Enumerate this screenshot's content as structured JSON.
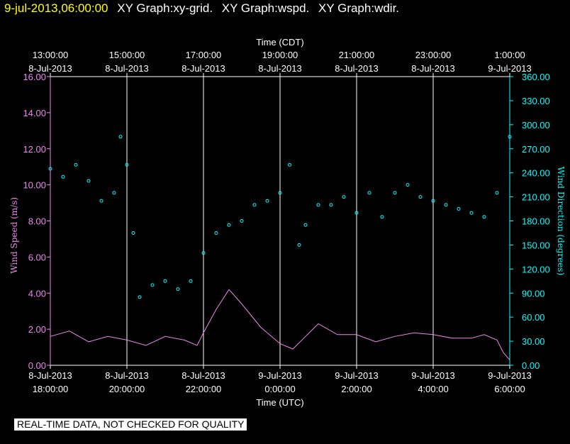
{
  "header": {
    "timestamp": "9-jul-2013,06:00:00",
    "graphs": [
      "XY Graph:xy-grid.",
      "XY Graph:wspd.",
      "XY Graph:wdir."
    ]
  },
  "quality_note": "REAL-TIME DATA, NOT CHECKED FOR QUALITY",
  "colors": {
    "background": "#000000",
    "frame": "#ffffff",
    "wind_speed": "#ee88ee",
    "wind_direction": "#00ffff",
    "header_timestamp": "#ffff00",
    "grid": "#ffffff"
  },
  "chart_data": {
    "type": "line",
    "grid": true,
    "top_axis": {
      "title": "Time (CDT)",
      "ticks": [
        {
          "time": "13:00:00",
          "date": "8-Jul-2013"
        },
        {
          "time": "15:00:00",
          "date": "8-Jul-2013"
        },
        {
          "time": "17:00:00",
          "date": "8-Jul-2013"
        },
        {
          "time": "19:00:00",
          "date": "8-Jul-2013"
        },
        {
          "time": "21:00:00",
          "date": "8-Jul-2013"
        },
        {
          "time": "23:00:00",
          "date": "8-Jul-2013"
        },
        {
          "time": "1:00:00",
          "date": "9-Jul-2013"
        }
      ]
    },
    "bottom_axis": {
      "title": "Time (UTC)",
      "ticks": [
        {
          "date": "8-Jul-2013",
          "time": "18:00:00"
        },
        {
          "date": "8-Jul-2013",
          "time": "20:00:00"
        },
        {
          "date": "8-Jul-2013",
          "time": "22:00:00"
        },
        {
          "date": "9-Jul-2013",
          "time": "0:00:00"
        },
        {
          "date": "9-Jul-2013",
          "time": "2:00:00"
        },
        {
          "date": "9-Jul-2013",
          "time": "4:00:00"
        },
        {
          "date": "9-Jul-2013",
          "time": "6:00:00"
        }
      ]
    },
    "y_left": {
      "title": "Wind Speed (m/s)",
      "range": [
        0,
        16
      ],
      "ticks": [
        "0.00",
        "2.00",
        "4.00",
        "6.00",
        "8.00",
        "10.00",
        "12.00",
        "14.00",
        "16.00"
      ]
    },
    "y_right": {
      "title": "Wind Direction (degrees)",
      "range": [
        0,
        360
      ],
      "ticks": [
        "0.00",
        "30.00",
        "60.00",
        "90.00",
        "120.00",
        "150.00",
        "180.00",
        "210.00",
        "240.00",
        "270.00",
        "300.00",
        "330.00",
        "360.00"
      ]
    },
    "series": [
      {
        "name": "Wind Speed",
        "style": "line",
        "axis": "left",
        "x": [
          "18:00",
          "18:30",
          "19:00",
          "19:30",
          "20:00",
          "20:30",
          "21:00",
          "21:30",
          "21:50",
          "22:00",
          "22:20",
          "22:40",
          "23:00",
          "23:30",
          "0:00",
          "0:20",
          "0:40",
          "1:00",
          "1:30",
          "2:00",
          "2:30",
          "3:00",
          "3:30",
          "4:00",
          "4:30",
          "5:00",
          "5:20",
          "5:40",
          "5:50",
          "6:00"
        ],
        "values": [
          1.6,
          1.9,
          1.3,
          1.6,
          1.4,
          1.1,
          1.6,
          1.4,
          1.1,
          1.8,
          3.1,
          4.2,
          3.4,
          2.1,
          1.2,
          0.9,
          1.6,
          2.3,
          1.7,
          1.7,
          1.3,
          1.6,
          1.8,
          1.7,
          1.5,
          1.5,
          1.7,
          1.4,
          0.7,
          0.3
        ]
      },
      {
        "name": "Wind Direction",
        "style": "scatter",
        "axis": "right",
        "x": [
          "18:00",
          "18:20",
          "18:40",
          "19:00",
          "19:20",
          "19:40",
          "19:50",
          "20:00",
          "20:10",
          "20:20",
          "20:40",
          "21:00",
          "21:20",
          "21:40",
          "22:00",
          "22:20",
          "22:40",
          "23:00",
          "23:20",
          "23:40",
          "0:00",
          "0:15",
          "0:30",
          "0:40",
          "1:00",
          "1:20",
          "1:40",
          "2:00",
          "2:20",
          "2:40",
          "3:00",
          "3:20",
          "3:40",
          "4:00",
          "4:20",
          "4:40",
          "5:00",
          "5:20",
          "5:40",
          "6:00"
        ],
        "values": [
          245,
          235,
          250,
          230,
          205,
          215,
          285,
          250,
          165,
          85,
          100,
          105,
          95,
          105,
          140,
          165,
          175,
          180,
          200,
          205,
          215,
          250,
          150,
          175,
          200,
          200,
          210,
          190,
          215,
          185,
          215,
          225,
          210,
          205,
          200,
          195,
          190,
          185,
          215,
          285
        ]
      }
    ]
  }
}
